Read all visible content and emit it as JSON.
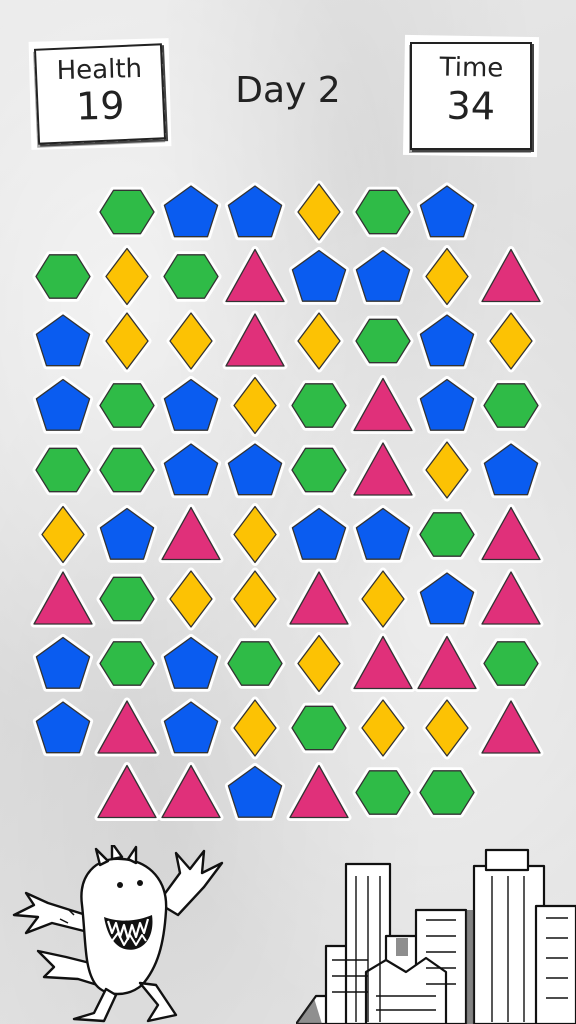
{
  "hud": {
    "health_label": "Health",
    "health_value": "19",
    "day_label": "Day 2",
    "time_label": "Time",
    "time_value": "34"
  },
  "colors": {
    "hexagon": "#2fbb47",
    "pentagon": "#0a5cf0",
    "diamond": "#fcc204",
    "triangle": "#e0307a"
  },
  "board": {
    "rows": [
      [
        "",
        "hexagon",
        "pentagon",
        "pentagon",
        "diamond",
        "hexagon",
        "pentagon",
        ""
      ],
      [
        "hexagon",
        "diamond",
        "hexagon",
        "triangle",
        "pentagon",
        "pentagon",
        "diamond",
        "triangle"
      ],
      [
        "pentagon",
        "diamond",
        "diamond",
        "triangle",
        "diamond",
        "hexagon",
        "pentagon",
        "diamond"
      ],
      [
        "pentagon",
        "hexagon",
        "pentagon",
        "diamond",
        "hexagon",
        "triangle",
        "pentagon",
        "hexagon"
      ],
      [
        "hexagon",
        "hexagon",
        "pentagon",
        "pentagon",
        "hexagon",
        "triangle",
        "diamond",
        "pentagon"
      ],
      [
        "diamond",
        "pentagon",
        "triangle",
        "diamond",
        "pentagon",
        "pentagon",
        "hexagon",
        "triangle"
      ],
      [
        "triangle",
        "hexagon",
        "diamond",
        "diamond",
        "triangle",
        "diamond",
        "pentagon",
        "triangle"
      ],
      [
        "pentagon",
        "hexagon",
        "pentagon",
        "hexagon",
        "diamond",
        "triangle",
        "triangle",
        "hexagon"
      ],
      [
        "pentagon",
        "triangle",
        "pentagon",
        "diamond",
        "hexagon",
        "diamond",
        "diamond",
        "triangle"
      ],
      [
        "",
        "triangle",
        "triangle",
        "pentagon",
        "triangle",
        "hexagon",
        "hexagon",
        ""
      ]
    ]
  },
  "scene": {
    "monster_icon": "monster-icon",
    "city_icon": "city-skyline-icon"
  }
}
